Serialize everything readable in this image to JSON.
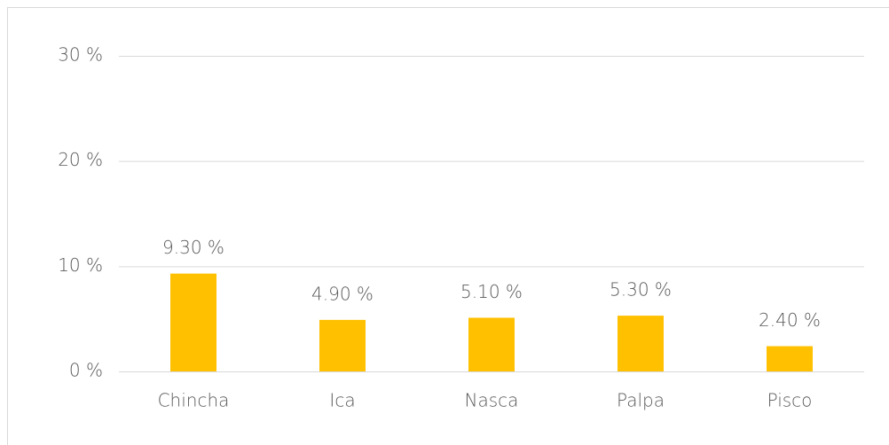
{
  "chart_data": {
    "type": "bar",
    "categories": [
      "Chincha",
      "Ica",
      "Nasca",
      "Palpa",
      "Pisco"
    ],
    "values": [
      9.3,
      4.9,
      5.1,
      5.3,
      2.4
    ],
    "value_labels": [
      "9.30 %",
      "4.90 %",
      "5.10 %",
      "5.30 %",
      "2.40 %"
    ],
    "color": "#ffc000",
    "ylim": [
      0,
      30
    ],
    "yticks": [
      {
        "value": 0,
        "label": "0 %"
      },
      {
        "value": 10,
        "label": "10 %"
      },
      {
        "value": 20,
        "label": "20 %"
      },
      {
        "value": 30,
        "label": "30 %"
      }
    ],
    "grid": true
  }
}
